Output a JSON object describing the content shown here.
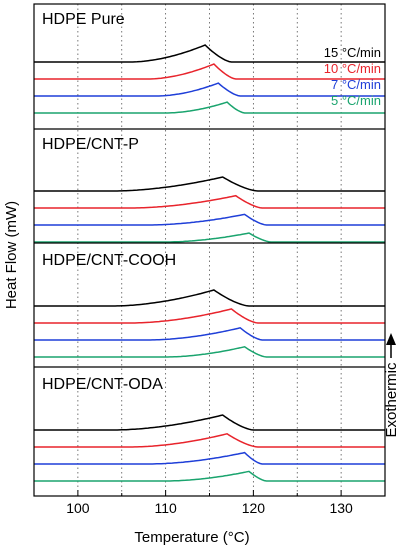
{
  "chart_data": {
    "type": "line",
    "xlabel": "Temperature (°C)",
    "ylabel": "Heat Flow (mW)",
    "annotation": "Exothermic",
    "xlim": [
      95,
      135
    ],
    "xticks": [
      100,
      110,
      120,
      130
    ],
    "grid": "vertical dotted lines every 5 °C",
    "series_styles": [
      {
        "name": "15 °C/min",
        "color": "#000000"
      },
      {
        "name": "10 °C/min",
        "color": "#e8242c"
      },
      {
        "name": "7 °C/min",
        "color": "#1f3fd8"
      },
      {
        "name": "5 °C/min",
        "color": "#1aa46e"
      }
    ],
    "panels": [
      {
        "title": "HDPE Pure",
        "legend": [
          "15 °C/min",
          "10 °C/min",
          "7 °C/min",
          "5 °C/min"
        ],
        "peaks": [
          {
            "series": "15 °C/min",
            "onset": 106,
            "peak": 114.5,
            "end": 117.5
          },
          {
            "series": "10 °C/min",
            "onset": 108,
            "peak": 115.5,
            "end": 118
          },
          {
            "series": "7 °C/min",
            "onset": 109,
            "peak": 116,
            "end": 118.5
          },
          {
            "series": "5 °C/min",
            "onset": 110,
            "peak": 117,
            "end": 119
          }
        ]
      },
      {
        "title": "HDPE/CNT-P",
        "legend": [],
        "peaks": [
          {
            "series": "15 °C/min",
            "onset": 104,
            "peak": 116.5,
            "end": 120.5
          },
          {
            "series": "10 °C/min",
            "onset": 106,
            "peak": 118,
            "end": 121
          },
          {
            "series": "7 °C/min",
            "onset": 108,
            "peak": 119,
            "end": 121.5
          },
          {
            "series": "5 °C/min",
            "onset": 110,
            "peak": 119.5,
            "end": 122
          }
        ]
      },
      {
        "title": "HDPE/CNT-COOH",
        "legend": [],
        "peaks": [
          {
            "series": "15 °C/min",
            "onset": 104,
            "peak": 115.5,
            "end": 119.5
          },
          {
            "series": "10 °C/min",
            "onset": 106,
            "peak": 117.5,
            "end": 120.5
          },
          {
            "series": "7 °C/min",
            "onset": 108,
            "peak": 118.5,
            "end": 121
          },
          {
            "series": "5 °C/min",
            "onset": 110,
            "peak": 119,
            "end": 121.5
          }
        ]
      },
      {
        "title": "HDPE/CNT-ODA",
        "legend": [],
        "peaks": [
          {
            "series": "15 °C/min",
            "onset": 104,
            "peak": 116.5,
            "end": 120
          },
          {
            "series": "10 °C/min",
            "onset": 106,
            "peak": 117,
            "end": 120.5
          },
          {
            "series": "7 °C/min",
            "onset": 108,
            "peak": 119,
            "end": 121
          },
          {
            "series": "5 °C/min",
            "onset": 110,
            "peak": 119.5,
            "end": 121.5
          }
        ]
      }
    ]
  }
}
